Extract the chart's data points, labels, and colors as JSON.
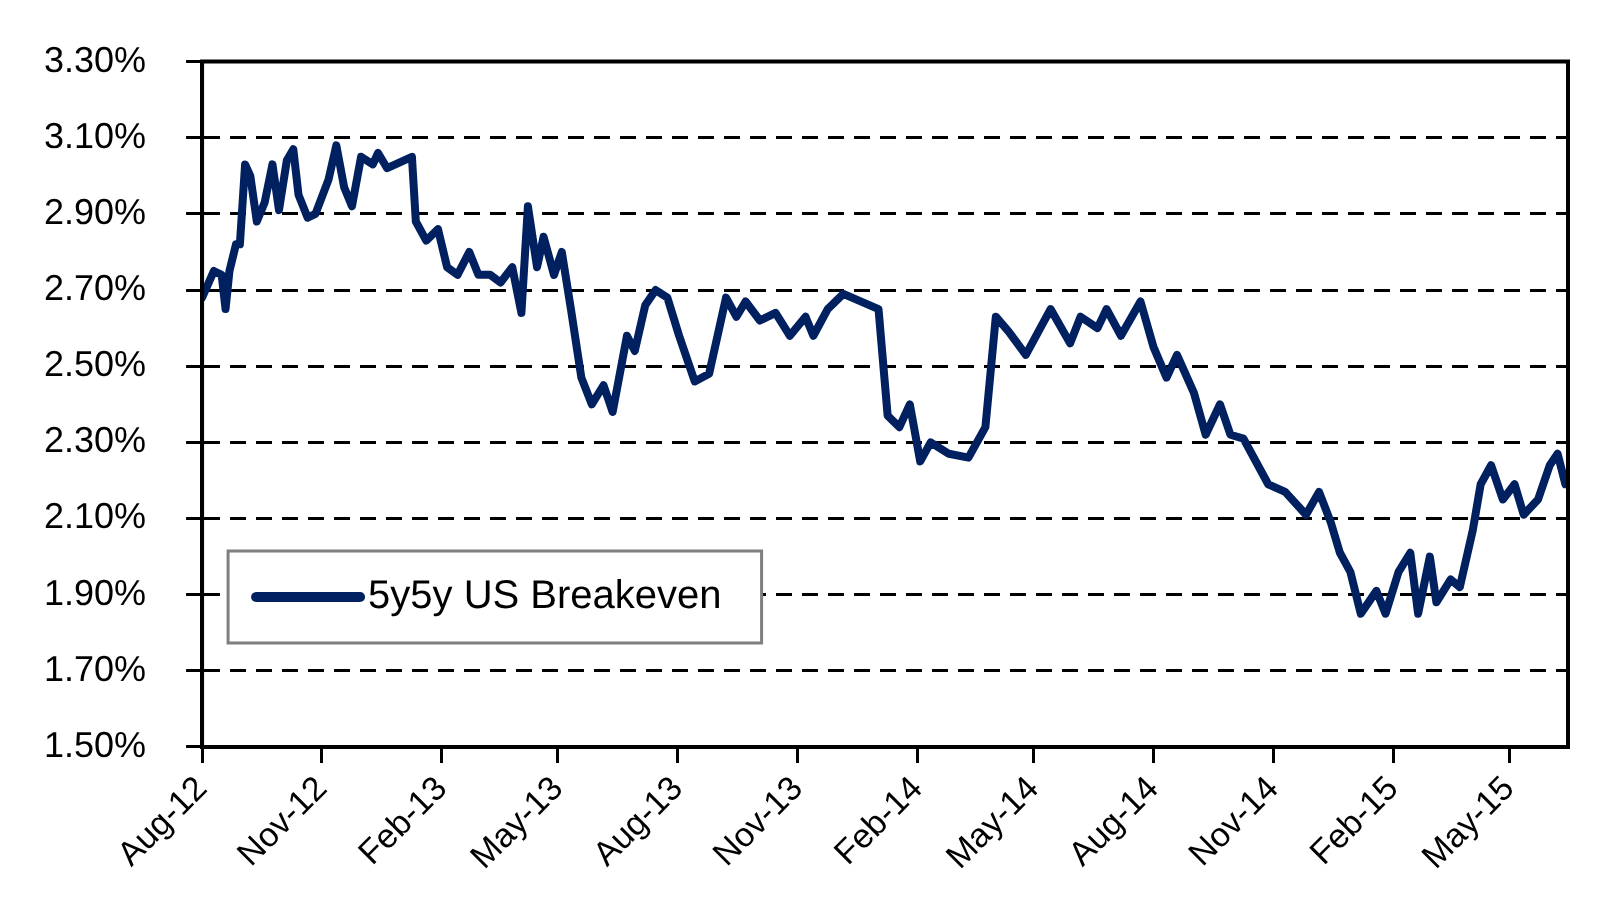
{
  "chart_data": {
    "type": "line",
    "x": [
      "2012-08-01",
      "2012-08-10",
      "2012-08-16",
      "2012-08-19",
      "2012-08-22",
      "2012-08-27",
      "2012-08-30",
      "2012-09-03",
      "2012-09-07",
      "2012-09-12",
      "2012-09-18",
      "2012-09-24",
      "2012-09-29",
      "2012-10-05",
      "2012-10-10",
      "2012-10-14",
      "2012-10-21",
      "2012-10-27",
      "2012-11-06",
      "2012-11-12",
      "2012-11-18",
      "2012-11-24",
      "2012-12-01",
      "2012-12-10",
      "2012-12-14",
      "2012-12-21",
      "2013-01-09",
      "2013-01-12",
      "2013-01-20",
      "2013-01-29",
      "2013-02-05",
      "2013-02-13",
      "2013-02-22",
      "2013-03-01",
      "2013-03-10",
      "2013-03-18",
      "2013-03-27",
      "2013-04-03",
      "2013-04-08",
      "2013-04-15",
      "2013-04-20",
      "2013-04-28",
      "2013-05-04",
      "2013-05-11",
      "2013-05-19",
      "2013-05-27",
      "2013-06-05",
      "2013-06-12",
      "2013-06-23",
      "2013-06-29",
      "2013-07-07",
      "2013-07-15",
      "2013-07-24",
      "2013-08-02",
      "2013-08-14",
      "2013-08-25",
      "2013-09-07",
      "2013-09-15",
      "2013-09-22",
      "2013-10-03",
      "2013-10-15",
      "2013-10-26",
      "2013-11-07",
      "2013-11-13",
      "2013-11-24",
      "2013-12-06",
      "2014-01-02",
      "2014-01-09",
      "2014-01-18",
      "2014-01-26",
      "2014-02-03",
      "2014-02-11",
      "2014-02-25",
      "2014-03-12",
      "2014-03-25",
      "2014-04-02",
      "2014-04-12",
      "2014-04-25",
      "2014-05-14",
      "2014-05-29",
      "2014-06-06",
      "2014-06-19",
      "2014-06-26",
      "2014-07-07",
      "2014-07-22",
      "2014-08-01",
      "2014-08-11",
      "2014-08-19",
      "2014-09-01",
      "2014-09-10",
      "2014-09-21",
      "2014-09-29",
      "2014-10-09",
      "2014-10-28",
      "2014-11-10",
      "2014-11-26",
      "2014-12-06",
      "2014-12-15",
      "2014-12-22",
      "2014-12-30",
      "2015-01-07",
      "2015-01-19",
      "2015-01-26",
      "2015-02-05",
      "2015-02-14",
      "2015-02-20",
      "2015-03-01",
      "2015-03-06",
      "2015-03-17",
      "2015-03-24",
      "2015-04-03",
      "2015-04-09",
      "2015-04-17",
      "2015-04-26",
      "2015-05-05",
      "2015-05-12",
      "2015-05-23",
      "2015-06-01",
      "2015-06-07",
      "2015-06-13"
    ],
    "series": [
      {
        "name": "5y5y US Breakeven",
        "color": "#002060",
        "values": [
          2.68,
          2.75,
          2.74,
          2.65,
          2.75,
          2.82,
          2.82,
          3.03,
          3.0,
          2.88,
          2.93,
          3.03,
          2.91,
          3.04,
          3.07,
          2.95,
          2.89,
          2.9,
          2.99,
          3.08,
          2.97,
          2.92,
          3.05,
          3.03,
          3.06,
          3.02,
          3.05,
          2.88,
          2.83,
          2.86,
          2.76,
          2.74,
          2.8,
          2.74,
          2.74,
          2.72,
          2.76,
          2.64,
          2.92,
          2.76,
          2.84,
          2.74,
          2.8,
          2.65,
          2.47,
          2.4,
          2.45,
          2.38,
          2.58,
          2.54,
          2.66,
          2.7,
          2.68,
          2.58,
          2.46,
          2.48,
          2.68,
          2.63,
          2.67,
          2.62,
          2.64,
          2.58,
          2.63,
          2.58,
          2.65,
          2.69,
          2.65,
          2.37,
          2.34,
          2.4,
          2.25,
          2.3,
          2.27,
          2.26,
          2.34,
          2.63,
          2.59,
          2.53,
          2.65,
          2.56,
          2.63,
          2.6,
          2.65,
          2.58,
          2.67,
          2.55,
          2.47,
          2.53,
          2.43,
          2.32,
          2.4,
          2.32,
          2.31,
          2.19,
          2.17,
          2.11,
          2.17,
          2.09,
          2.01,
          1.96,
          1.85,
          1.91,
          1.85,
          1.96,
          2.01,
          1.85,
          2.0,
          1.88,
          1.94,
          1.92,
          2.07,
          2.19,
          2.24,
          2.15,
          2.19,
          2.11,
          2.15,
          2.24,
          2.27,
          2.19
        ]
      }
    ],
    "xlim": [
      "2012-08-01",
      "2015-06-15"
    ],
    "xticks": [
      {
        "value": "2012-08-01",
        "label": "Aug-12"
      },
      {
        "value": "2012-11-01",
        "label": "Nov-12"
      },
      {
        "value": "2013-02-01",
        "label": "Feb-13"
      },
      {
        "value": "2013-05-01",
        "label": "May-13"
      },
      {
        "value": "2013-08-01",
        "label": "Aug-13"
      },
      {
        "value": "2013-11-01",
        "label": "Nov-13"
      },
      {
        "value": "2014-02-01",
        "label": "Feb-14"
      },
      {
        "value": "2014-05-01",
        "label": "May-14"
      },
      {
        "value": "2014-08-01",
        "label": "Aug-14"
      },
      {
        "value": "2014-11-01",
        "label": "Nov-14"
      },
      {
        "value": "2015-02-01",
        "label": "Feb-15"
      },
      {
        "value": "2015-05-01",
        "label": "May-15"
      }
    ],
    "ylim": [
      1.5,
      3.3
    ],
    "yticks": [
      {
        "value": 1.5,
        "label": "1.50%"
      },
      {
        "value": 1.7,
        "label": "1.70%"
      },
      {
        "value": 1.9,
        "label": "1.90%"
      },
      {
        "value": 2.1,
        "label": "2.10%"
      },
      {
        "value": 2.3,
        "label": "2.30%"
      },
      {
        "value": 2.5,
        "label": "2.50%"
      },
      {
        "value": 2.7,
        "label": "2.70%"
      },
      {
        "value": 2.9,
        "label": "2.90%"
      },
      {
        "value": 3.1,
        "label": "3.10%"
      },
      {
        "value": 3.3,
        "label": "3.30%"
      }
    ],
    "grid": "y",
    "legend": "bottom left",
    "marker": "none",
    "line_style": "solid"
  }
}
